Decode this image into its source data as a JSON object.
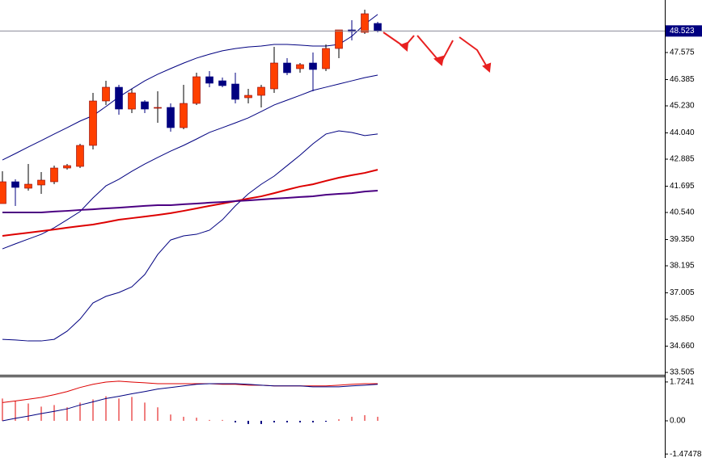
{
  "chart_data": [
    {
      "type": "candlestick",
      "up_color": "#ff3f00",
      "down_color": "#000080",
      "open": [
        40.931,
        41.891,
        41.607,
        41.749,
        41.891,
        42.495,
        42.566,
        43.49,
        45.444,
        46.048,
        45.088,
        45.408,
        45.124,
        45.16,
        44.271,
        45.337,
        46.51,
        46.332,
        46.19,
        45.586,
        45.692,
        45.977,
        47.114,
        46.865,
        47.114,
        46.865,
        47.753,
        48.57,
        48.464,
        48.855
      ],
      "high": [
        42.353,
        41.997,
        42.672,
        42.317,
        42.601,
        42.672,
        43.561,
        45.799,
        46.332,
        46.154,
        45.977,
        45.479,
        45.87,
        45.337,
        46.154,
        46.687,
        46.758,
        46.474,
        46.687,
        45.977,
        46.154,
        47.824,
        47.327,
        47.114,
        47.576,
        47.931,
        48.57,
        48.997,
        49.459,
        48.926
      ],
      "low": [
        40.931,
        40.825,
        41.5,
        41.358,
        41.784,
        42.424,
        42.495,
        43.312,
        45.266,
        44.84,
        44.911,
        44.911,
        44.484,
        44.094,
        44.2,
        45.266,
        46.048,
        46.048,
        45.337,
        45.337,
        45.16,
        45.799,
        46.581,
        46.687,
        45.87,
        46.758,
        47.327,
        48.108,
        48.393,
        48.464
      ],
      "close": [
        41.891,
        41.642,
        41.784,
        41.962,
        42.495,
        42.601,
        43.49,
        45.444,
        46.048,
        45.088,
        45.799,
        45.088,
        45.16,
        44.271,
        45.337,
        46.51,
        46.225,
        46.119,
        45.515,
        45.692,
        46.048,
        47.114,
        46.687,
        47.043,
        46.829,
        47.753,
        48.57,
        48.499,
        49.281,
        48.523
      ],
      "overlays": [
        {
          "color": "#000080",
          "width": 1,
          "values": [
            42.85,
            43.13,
            43.42,
            43.7,
            43.99,
            44.27,
            44.56,
            44.8,
            45.2,
            45.62,
            45.98,
            46.33,
            46.62,
            46.87,
            47.11,
            47.33,
            47.5,
            47.65,
            47.75,
            47.82,
            47.86,
            47.93,
            47.93,
            47.9,
            47.86,
            47.86,
            47.93,
            48.29,
            48.82,
            49.25
          ]
        },
        {
          "color": "#000080",
          "width": 1,
          "values": [
            38.94,
            39.16,
            39.37,
            39.58,
            39.87,
            40.22,
            40.58,
            41.18,
            41.71,
            42.0,
            42.35,
            42.67,
            42.96,
            43.24,
            43.49,
            43.77,
            44.06,
            44.27,
            44.48,
            44.7,
            44.98,
            45.27,
            45.48,
            45.69,
            45.91,
            46.05,
            46.19,
            46.33,
            46.47,
            46.58
          ]
        },
        {
          "color": "#000080",
          "width": 1,
          "values": [
            34.96,
            34.93,
            34.89,
            34.89,
            34.96,
            35.32,
            35.85,
            36.56,
            36.85,
            37.02,
            37.27,
            37.81,
            38.69,
            39.33,
            39.51,
            39.58,
            39.76,
            40.22,
            40.83,
            41.36,
            41.78,
            42.14,
            42.6,
            43.06,
            43.56,
            43.99,
            44.13,
            44.06,
            43.92,
            43.99
          ]
        },
        {
          "color": "#dd0000",
          "width": 2,
          "values": [
            39.51,
            39.58,
            39.65,
            39.72,
            39.79,
            39.87,
            39.94,
            40.01,
            40.11,
            40.22,
            40.29,
            40.36,
            40.43,
            40.51,
            40.61,
            40.72,
            40.83,
            40.93,
            41.04,
            41.15,
            41.25,
            41.39,
            41.54,
            41.68,
            41.78,
            41.93,
            42.07,
            42.18,
            42.28,
            42.42
          ]
        },
        {
          "color": "#4b0082",
          "width": 2,
          "values": [
            40.54,
            40.54,
            40.54,
            40.54,
            40.58,
            40.61,
            40.65,
            40.68,
            40.72,
            40.75,
            40.79,
            40.83,
            40.86,
            40.86,
            40.9,
            40.93,
            40.97,
            41.0,
            41.04,
            41.07,
            41.11,
            41.15,
            41.18,
            41.22,
            41.25,
            41.32,
            41.36,
            41.39,
            41.46,
            41.5
          ]
        }
      ],
      "current_price": 48.523,
      "ylim": [
        33.4,
        49.885
      ],
      "yticks": [
        {
          "value": 47.575,
          "label": "47.575"
        },
        46.385,
        {
          "value": 45.23,
          "label": "45.230"
        },
        {
          "value": 44.04,
          "label": "44.040"
        },
        42.885,
        41.695,
        {
          "value": 40.54,
          "label": "40.540"
        },
        {
          "value": 39.35,
          "label": "39.350"
        },
        38.195,
        37.005,
        {
          "value": 35.85,
          "label": "35.850"
        },
        {
          "value": 34.66,
          "label": "34.660"
        },
        33.505
      ]
    },
    {
      "type": "macd",
      "positive_color": "#f08080",
      "negative_color": "#000080",
      "values": [
        0.99,
        0.88,
        0.77,
        0.63,
        0.7,
        0.6,
        0.81,
        0.95,
        1.09,
        0.99,
        1.06,
        0.81,
        0.6,
        0.28,
        0.18,
        0.14,
        0.04,
        0.04,
        -0.07,
        -0.14,
        -0.14,
        -0.07,
        -0.07,
        -0.07,
        -0.07,
        -0.04,
        0.07,
        0.18,
        0.25,
        0.18
      ],
      "lines": [
        {
          "color": "#dd0000",
          "values": [
            0.81,
            0.88,
            0.96,
            1.04,
            1.16,
            1.3,
            1.48,
            1.62,
            1.72,
            1.76,
            1.72,
            1.69,
            1.65,
            1.65,
            1.65,
            1.65,
            1.65,
            1.62,
            1.62,
            1.58,
            1.58,
            1.55,
            1.55,
            1.55,
            1.55,
            1.55,
            1.58,
            1.62,
            1.65,
            1.65
          ]
        },
        {
          "color": "#000080",
          "values": [
            0.0,
            0.11,
            0.21,
            0.32,
            0.42,
            0.53,
            0.7,
            0.84,
            0.99,
            1.09,
            1.2,
            1.3,
            1.41,
            1.48,
            1.55,
            1.62,
            1.65,
            1.65,
            1.65,
            1.62,
            1.58,
            1.55,
            1.55,
            1.55,
            1.51,
            1.51,
            1.51,
            1.55,
            1.58,
            1.62
          ]
        }
      ],
      "ylim": [
        -1.65,
        1.935
      ],
      "yticks": [
        1.7241,
        {
          "value": 0,
          "label": "0.00"
        },
        -1.47478
      ]
    }
  ]
}
